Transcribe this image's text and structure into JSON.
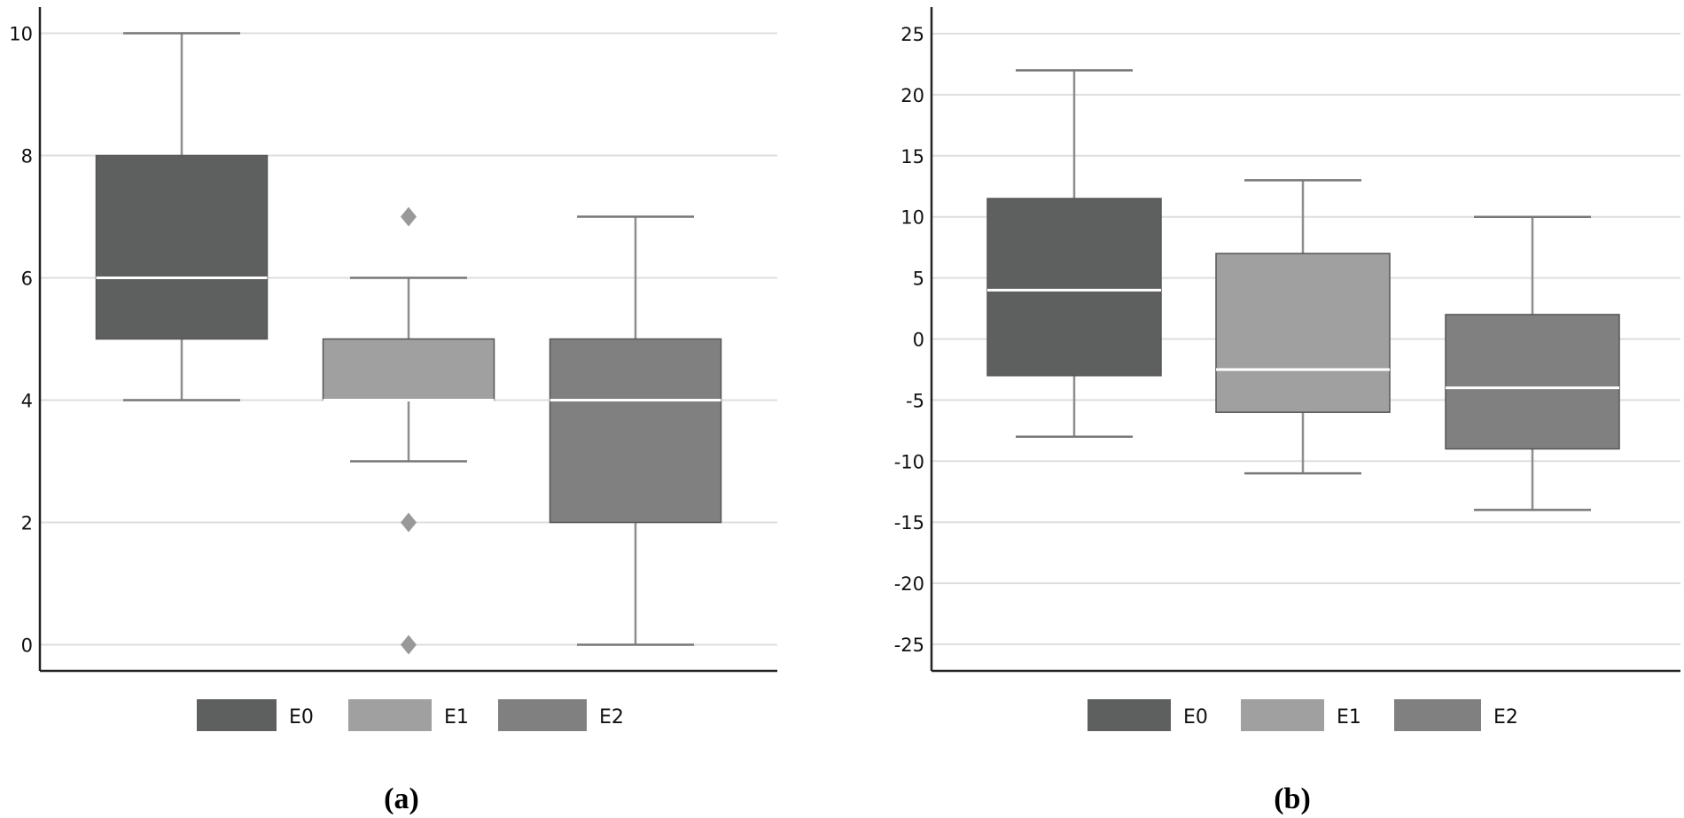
{
  "chart_data": [
    {
      "type": "box",
      "caption": "(a)",
      "ylim": [
        -0.5,
        10.5
      ],
      "yticks": [
        0,
        2,
        4,
        6,
        8,
        10
      ],
      "ytick_labels": [
        "0",
        "2",
        "4",
        "6",
        "8",
        "10"
      ],
      "grid": true,
      "legend_position": "bottom",
      "series": [
        {
          "name": "E0",
          "color": "#5e605f",
          "whisker_low": 4,
          "q1": 5,
          "median": 6,
          "q3": 8,
          "whisker_high": 10,
          "outliers": []
        },
        {
          "name": "E1",
          "color": "#a0a0a0",
          "whisker_low": 3,
          "q1": 4,
          "median": 4,
          "q3": 5,
          "whisker_high": 6,
          "outliers": [
            7,
            2,
            0
          ]
        },
        {
          "name": "E2",
          "color": "#808080",
          "whisker_low": 0,
          "q1": 2,
          "median": 4,
          "q3": 5,
          "whisker_high": 7,
          "outliers": []
        }
      ]
    },
    {
      "type": "box",
      "caption": "(b)",
      "ylim": [
        -27.5,
        27.5
      ],
      "yticks": [
        25,
        20,
        15,
        10,
        5,
        0,
        -5,
        -10,
        -15,
        -20,
        -25
      ],
      "ytick_labels": [
        "25",
        "20",
        "15",
        "10",
        "5",
        "0",
        "-5",
        "-10",
        "-15",
        "-20",
        "-25"
      ],
      "grid": true,
      "legend_position": "bottom",
      "series": [
        {
          "name": "E0",
          "color": "#5e605f",
          "whisker_low": -8,
          "q1": -3,
          "median": 4,
          "q3": 11.5,
          "whisker_high": 22,
          "outliers": []
        },
        {
          "name": "E1",
          "color": "#a0a0a0",
          "whisker_low": -11,
          "q1": -6,
          "median": -2.5,
          "q3": 7,
          "whisker_high": 13,
          "outliers": []
        },
        {
          "name": "E2",
          "color": "#808080",
          "whisker_low": -14,
          "q1": -9,
          "median": -4,
          "q3": 2,
          "whisker_high": 10,
          "outliers": []
        }
      ]
    }
  ]
}
